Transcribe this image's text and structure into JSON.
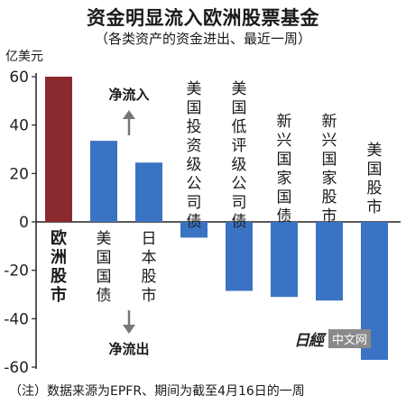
{
  "title": "资金明显流入欧洲股票基金",
  "subtitle": "（各类资产的资金进出、最近一周）",
  "unit": "亿美元",
  "note": "（注）数据来源为EPFR、期间为截至4月16日的一周",
  "watermark": {
    "logo": "日經",
    "text": "中文网"
  },
  "chart_data": {
    "type": "bar",
    "ylabel": "亿美元",
    "ylim": [
      -60,
      60
    ],
    "yticks": [
      60,
      40,
      20,
      0,
      -20,
      -40,
      -60
    ],
    "ytick_labels": [
      "60",
      "40",
      "20",
      "0",
      "-20",
      "-40",
      "-60"
    ],
    "categories": [
      "欧洲股市",
      "美国国债",
      "日本股市",
      "美国投资级公司债",
      "美国低评级公司债",
      "新兴国家国债",
      "新兴国家股市",
      "美国股市"
    ],
    "values": [
      60,
      33.5,
      24.5,
      -6.5,
      -28.5,
      -31,
      -32.5,
      -57
    ],
    "colors": [
      "#8b2a2e",
      "#3a73c4",
      "#3a73c4",
      "#3a73c4",
      "#3a73c4",
      "#3a73c4",
      "#3a73c4",
      "#3a73c4"
    ],
    "inflow_label": "净流入",
    "outflow_label": "净流出"
  }
}
